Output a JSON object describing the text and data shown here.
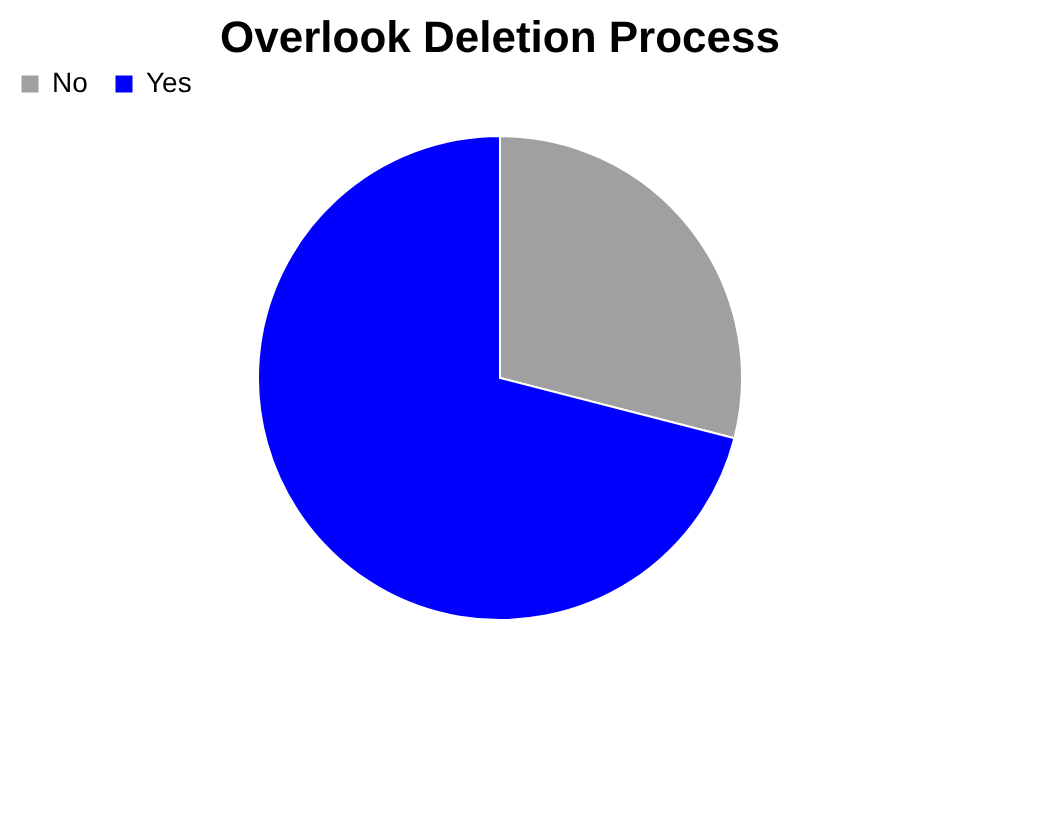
{
  "chart_data": {
    "type": "pie",
    "title": "Overlook Deletion Process",
    "categories": [
      "No",
      "Yes"
    ],
    "values": [
      29,
      71
    ],
    "colors": [
      "#a0a0a0",
      "#0000ff"
    ],
    "legend": "top"
  }
}
